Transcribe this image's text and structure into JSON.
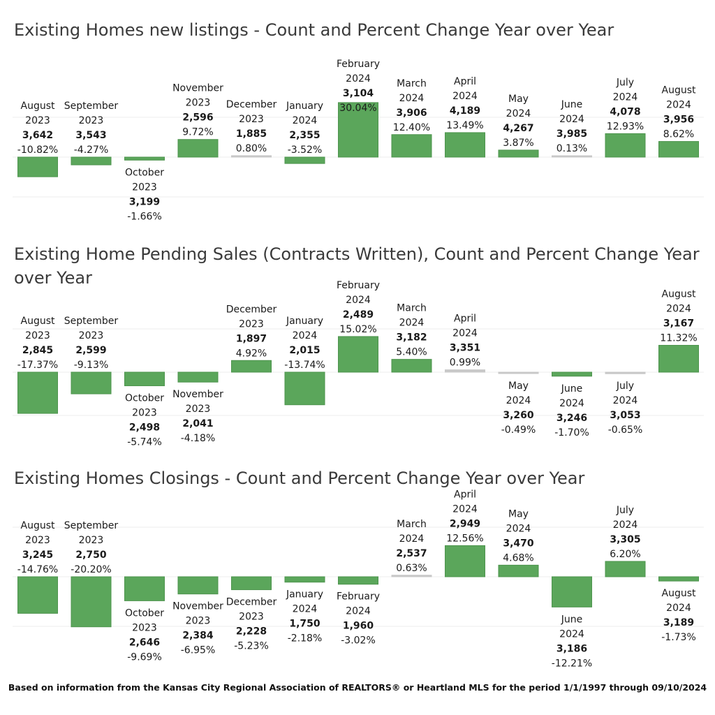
{
  "colors": {
    "bar": "#5ba65b",
    "bar_stroke": "#4e944e",
    "zero_bar": "#c8c8c8",
    "grid": "#ececec",
    "title": "#3a3a3a"
  },
  "footnote": "Based on information from the Kansas City Regional Association of REALTORS® or Heartland MLS for the period 1/1/1997 through  09/10/2024",
  "chart_data": [
    {
      "type": "bar",
      "title": "Existing Homes new listings -  Count and Percent Change Year over Year",
      "categories": [
        [
          "August",
          "2023"
        ],
        [
          "September",
          "2023"
        ],
        [
          "October",
          "2023"
        ],
        [
          "November",
          "2023"
        ],
        [
          "December",
          "2023"
        ],
        [
          "January",
          "2024"
        ],
        [
          "February",
          "2024"
        ],
        [
          "March",
          "2024"
        ],
        [
          "April",
          "2024"
        ],
        [
          "May",
          "2024"
        ],
        [
          "June",
          "2024"
        ],
        [
          "July",
          "2024"
        ],
        [
          "August",
          "2024"
        ]
      ],
      "counts": [
        "3,642",
        "3,543",
        "3,199",
        "2,596",
        "1,885",
        "2,355",
        "3,104",
        "3,906",
        "4,189",
        "4,267",
        "3,985",
        "4,078",
        "3,956"
      ],
      "values": [
        -10.82,
        -4.27,
        -1.66,
        9.72,
        0.8,
        -3.52,
        30.04,
        12.4,
        13.49,
        3.87,
        0.13,
        12.93,
        8.62
      ],
      "labels": [
        "-10.82%",
        "-4.27%",
        "-1.66%",
        "9.72%",
        "0.80%",
        "-3.52%",
        "30.04%",
        "12.40%",
        "13.49%",
        "3.87%",
        "0.13%",
        "12.93%",
        "8.62%"
      ],
      "label_position": [
        "above",
        "above",
        "below",
        "above",
        "above",
        "above",
        "above",
        "above",
        "above",
        "above",
        "above",
        "above",
        "above"
      ],
      "ylim": [
        -20,
        30
      ],
      "grid": true
    },
    {
      "type": "bar",
      "title": "Existing Home Pending Sales (Contracts Written), Count and Percent Change Year over Year",
      "categories": [
        [
          "August",
          "2023"
        ],
        [
          "September",
          "2023"
        ],
        [
          "October",
          "2023"
        ],
        [
          "November",
          "2023"
        ],
        [
          "December",
          "2023"
        ],
        [
          "January",
          "2024"
        ],
        [
          "February",
          "2024"
        ],
        [
          "March",
          "2024"
        ],
        [
          "April",
          "2024"
        ],
        [
          "May",
          "2024"
        ],
        [
          "June",
          "2024"
        ],
        [
          "July",
          "2024"
        ],
        [
          "August",
          "2024"
        ]
      ],
      "counts": [
        "2,845",
        "2,599",
        "2,498",
        "2,041",
        "1,897",
        "2,015",
        "2,489",
        "3,182",
        "3,351",
        "3,260",
        "3,246",
        "3,053",
        "3,167"
      ],
      "values": [
        -17.37,
        -9.13,
        -5.74,
        -4.18,
        4.92,
        -13.74,
        15.02,
        5.4,
        0.99,
        -0.49,
        -1.7,
        -0.65,
        11.32
      ],
      "labels": [
        "-17.37%",
        "-9.13%",
        "-5.74%",
        "-4.18%",
        "4.92%",
        "-13.74%",
        "15.02%",
        "5.40%",
        "0.99%",
        "-0.49%",
        "-1.70%",
        "-0.65%",
        "11.32%"
      ],
      "label_position": [
        "above",
        "above",
        "below",
        "below",
        "above",
        "above",
        "above",
        "above",
        "above",
        "below",
        "below",
        "below",
        "above"
      ],
      "ylim": [
        -20,
        20
      ],
      "grid": true
    },
    {
      "type": "bar",
      "title": "Existing Homes Closings - Count and Percent Change Year over Year",
      "categories": [
        [
          "August",
          "2023"
        ],
        [
          "September",
          "2023"
        ],
        [
          "October",
          "2023"
        ],
        [
          "November",
          "2023"
        ],
        [
          "December",
          "2023"
        ],
        [
          "January",
          "2024"
        ],
        [
          "February",
          "2024"
        ],
        [
          "March",
          "2024"
        ],
        [
          "April",
          "2024"
        ],
        [
          "May",
          "2024"
        ],
        [
          "June",
          "2024"
        ],
        [
          "July",
          "2024"
        ],
        [
          "August",
          "2024"
        ]
      ],
      "counts": [
        "3,245",
        "2,750",
        "2,646",
        "2,384",
        "2,228",
        "1,750",
        "1,960",
        "2,537",
        "2,949",
        "3,470",
        "3,186",
        "3,305",
        "3,189"
      ],
      "values": [
        -14.76,
        -20.2,
        -9.69,
        -6.95,
        -5.23,
        -2.18,
        -3.02,
        0.63,
        12.56,
        4.68,
        -12.21,
        6.2,
        -1.73
      ],
      "labels": [
        "-14.76%",
        "-20.20%",
        "-9.69%",
        "-6.95%",
        "-5.23%",
        "-2.18%",
        "-3.02%",
        "0.63%",
        "12.56%",
        "4.68%",
        "-12.21%",
        "6.20%",
        "-1.73%"
      ],
      "label_position": [
        "above",
        "above",
        "below",
        "below",
        "below",
        "below",
        "below",
        "above",
        "above",
        "above",
        "below",
        "above",
        "below"
      ],
      "ylim": [
        -20,
        20
      ],
      "grid": true
    }
  ]
}
